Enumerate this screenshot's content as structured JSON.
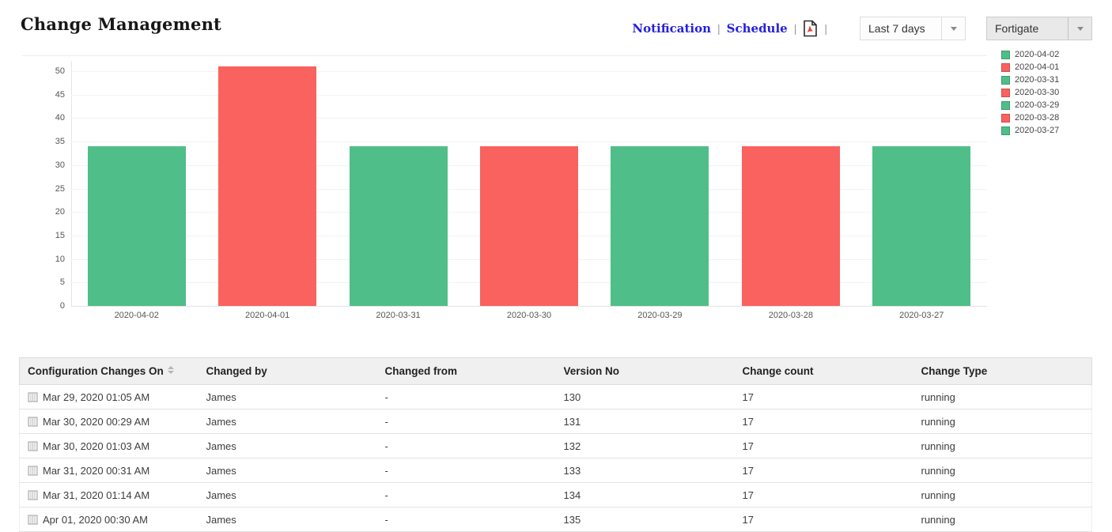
{
  "header": {
    "title": "Change Management",
    "links": [
      {
        "label": "Notification"
      },
      {
        "label": "Schedule"
      }
    ],
    "separator": "|",
    "period_select": {
      "value": "Last 7 days"
    },
    "device_select": {
      "value": "Fortigate"
    }
  },
  "colors": {
    "green": "#4FBE88",
    "red": "#F9625F",
    "link_blue": "#2420DD"
  },
  "chart_data": {
    "type": "bar",
    "categories": [
      "2020-04-02",
      "2020-04-01",
      "2020-03-31",
      "2020-03-30",
      "2020-03-29",
      "2020-03-28",
      "2020-03-27"
    ],
    "values": [
      34,
      51,
      34,
      34,
      34,
      34,
      34
    ],
    "bar_colors": [
      "#4FBE88",
      "#F9625F",
      "#4FBE88",
      "#F9625F",
      "#4FBE88",
      "#F9625F",
      "#4FBE88"
    ],
    "title": "",
    "xlabel": "",
    "ylabel": "",
    "ylim": [
      0,
      50
    ],
    "ytick_step": 5,
    "grid": true,
    "legend_position": "right",
    "legend": [
      {
        "label": "2020-04-02",
        "color": "#4FBE88"
      },
      {
        "label": "2020-04-01",
        "color": "#F9625F"
      },
      {
        "label": "2020-03-31",
        "color": "#4FBE88"
      },
      {
        "label": "2020-03-30",
        "color": "#F9625F"
      },
      {
        "label": "2020-03-29",
        "color": "#4FBE88"
      },
      {
        "label": "2020-03-28",
        "color": "#F9625F"
      },
      {
        "label": "2020-03-27",
        "color": "#4FBE88"
      }
    ]
  },
  "table": {
    "columns": [
      "Configuration Changes On",
      "Changed by",
      "Changed from",
      "Version No",
      "Change count",
      "Change Type"
    ],
    "sorted_column_index": 0,
    "rows": [
      [
        "Mar 29, 2020 01:05 AM",
        "James",
        "-",
        "130",
        "17",
        "running"
      ],
      [
        "Mar 30, 2020 00:29 AM",
        "James",
        "-",
        "131",
        "17",
        "running"
      ],
      [
        "Mar 30, 2020 01:03 AM",
        "James",
        "-",
        "132",
        "17",
        "running"
      ],
      [
        "Mar 31, 2020 00:31 AM",
        "James",
        "-",
        "133",
        "17",
        "running"
      ],
      [
        "Mar 31, 2020 01:14 AM",
        "James",
        "-",
        "134",
        "17",
        "running"
      ],
      [
        "Apr 01, 2020 00:30 AM",
        "James",
        "-",
        "135",
        "17",
        "running"
      ]
    ]
  }
}
